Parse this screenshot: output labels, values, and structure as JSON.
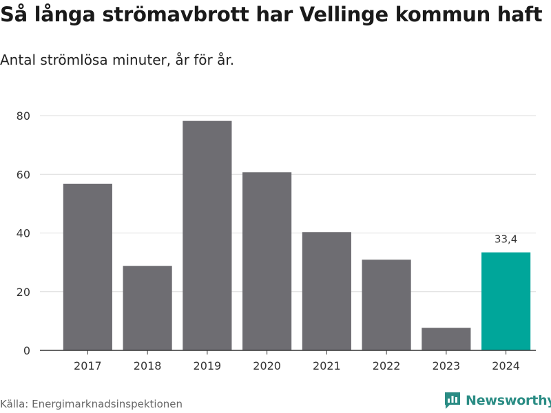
{
  "title": "Så långa strömavbrott har Vellinge kommun haft",
  "subtitle": "Antal strömlösa minuter, år för år.",
  "source": "Källa: Energimarknadsinspektionen",
  "brand": {
    "name": "Newsworthy",
    "icon": "newsworthy-logo-icon"
  },
  "colors": {
    "bar": "#6e6d72",
    "highlight": "#00a69a",
    "grid": "#dcdcdc",
    "brand": "#2a8c84"
  },
  "chart_data": {
    "type": "bar",
    "title": "Så långa strömavbrott har Vellinge kommun haft",
    "subtitle": "Antal strömlösa minuter, år för år.",
    "xlabel": "",
    "ylabel": "",
    "categories": [
      "2017",
      "2018",
      "2019",
      "2020",
      "2021",
      "2022",
      "2023",
      "2024"
    ],
    "values": [
      56.8,
      28.8,
      78.2,
      60.7,
      40.3,
      30.9,
      7.7,
      33.4
    ],
    "highlight_index": 7,
    "data_labels": [
      {
        "index": 7,
        "text": "33,4"
      }
    ],
    "ylim": [
      0,
      80
    ],
    "yticks": [
      0,
      20,
      40,
      60,
      80
    ],
    "grid": true,
    "legend": "none"
  }
}
